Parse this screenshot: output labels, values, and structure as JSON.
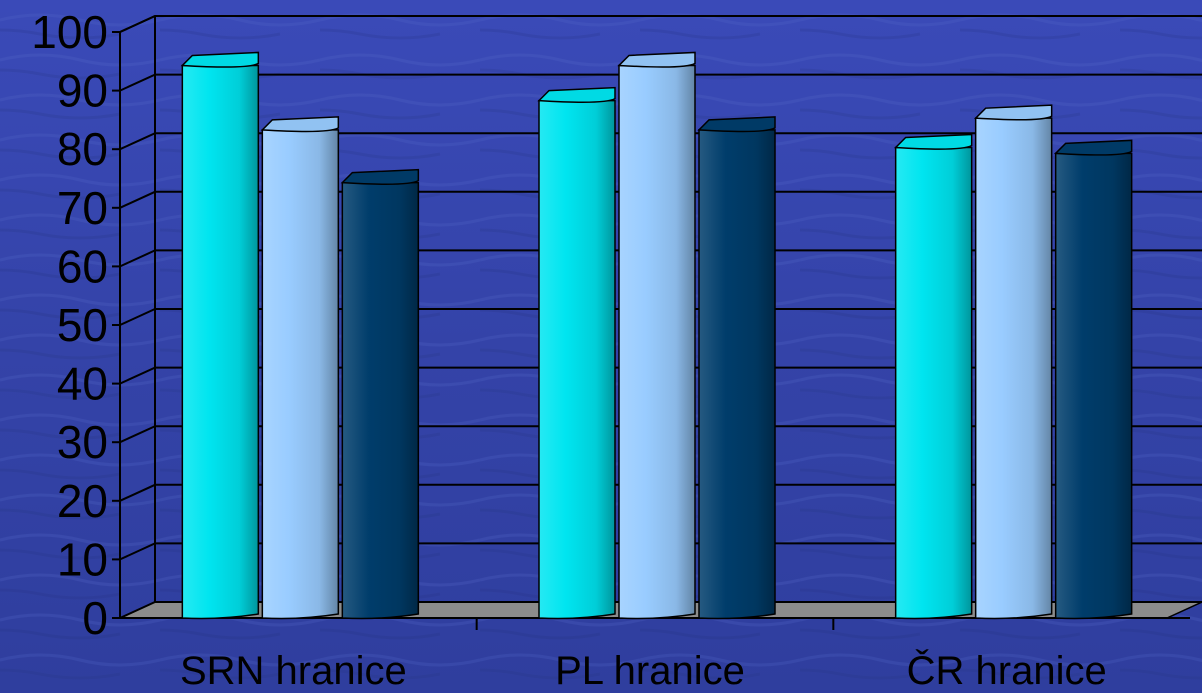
{
  "chart_data": {
    "type": "bar",
    "title": "",
    "xlabel": "",
    "ylabel": "",
    "ylim": [
      0,
      100
    ],
    "yticks": [
      "0",
      "10",
      "20",
      "30",
      "40",
      "50",
      "60",
      "70",
      "80",
      "90",
      "100"
    ],
    "categories": [
      "SRN hranice",
      "PL hranice",
      "ČR hranice"
    ],
    "series": [
      {
        "values": [
          96,
          90,
          82
        ],
        "color": "#00E5F0"
      },
      {
        "values": [
          85,
          96,
          87
        ],
        "color": "#99CCFF"
      },
      {
        "values": [
          76,
          85,
          81
        ],
        "color": "#003D6B"
      }
    ],
    "grid": true,
    "legend": "none",
    "colors": {
      "background": "#3A47B0",
      "floor": "#8C8C8C",
      "gridline": "#000000",
      "outline": "#000000"
    }
  }
}
